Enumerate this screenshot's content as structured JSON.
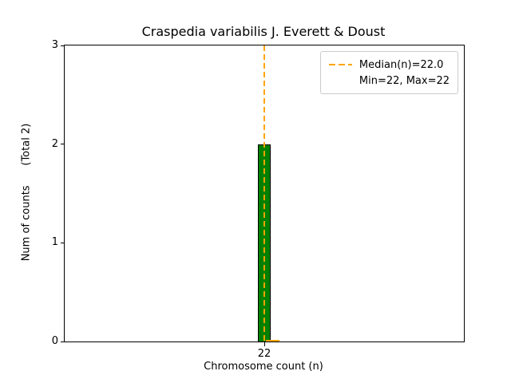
{
  "chart_data": {
    "type": "bar",
    "title": "Craspedia variabilis J. Everett & Doust",
    "xlabel": "Chromosome count (n)",
    "ylabel": "Num of counts      (Total 2)",
    "categories": [
      "22"
    ],
    "values": [
      2
    ],
    "ylim": [
      0,
      3
    ],
    "yticks": [
      0,
      1,
      2,
      3
    ],
    "median": 22.0,
    "min": 22,
    "max": 22,
    "total": 2,
    "grid": false,
    "legend": {
      "position": "upper right",
      "entries": [
        "Median(n)=22.0",
        "Min=22, Max=22"
      ]
    },
    "colors": {
      "bar_fill": "#008000",
      "bar_edge": "#000000",
      "median_line": "#FFA500",
      "range_line": "#FFA500"
    }
  }
}
